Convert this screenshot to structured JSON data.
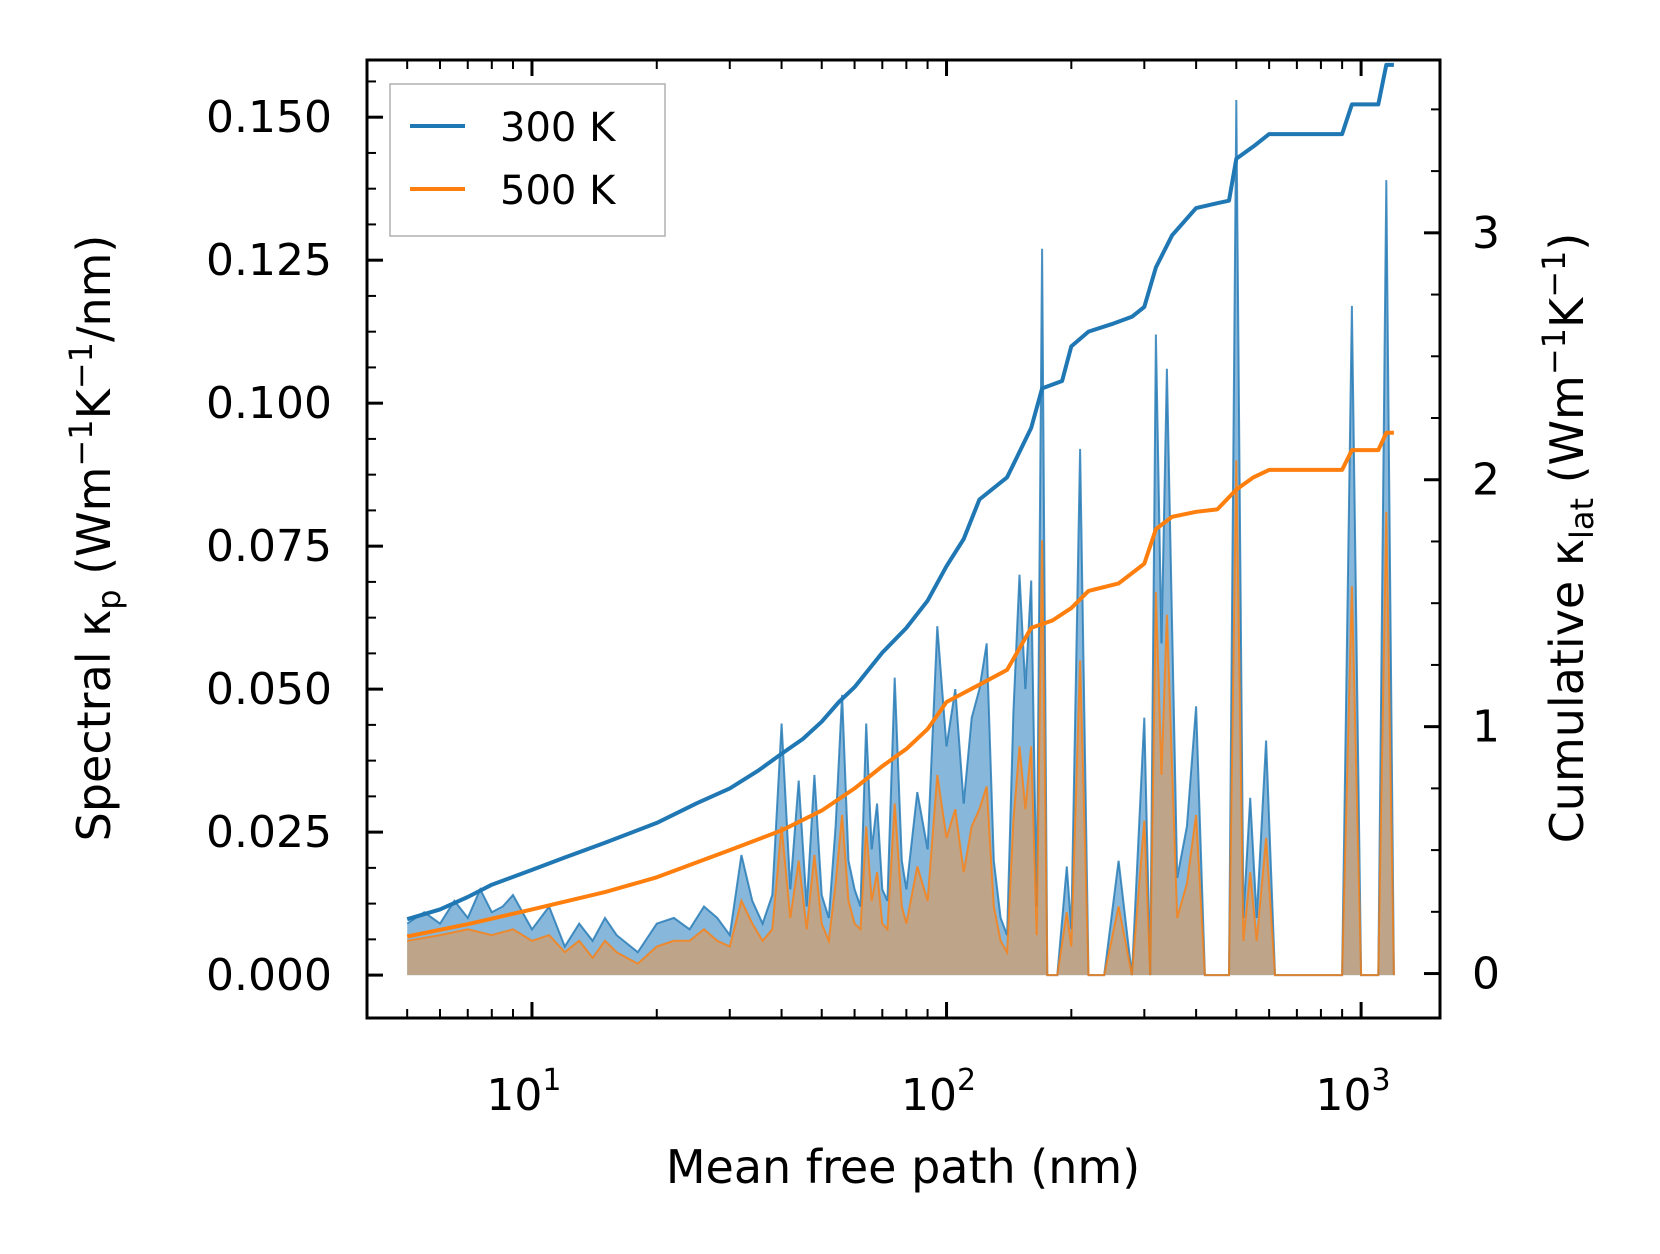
{
  "chart_data": {
    "type": "line",
    "title": "",
    "xlabel": "Mean free path (nm)",
    "xscale": "log",
    "xlim": [
      4.0,
      1550
    ],
    "x_ticks": [
      {
        "base": "10",
        "exp": "1"
      },
      {
        "base": "10",
        "exp": "2"
      },
      {
        "base": "10",
        "exp": "3"
      }
    ],
    "ylabel_left": {
      "main": "Spectral κ",
      "sub": "p",
      "unit_pre": " (Wm",
      "sup1": "−1",
      "unit_mid": "K",
      "sup2": "−1",
      "unit_post": "/nm)"
    },
    "ylabel_right": {
      "main": "Cumulative κ",
      "sub": "lat",
      "unit_pre": " (Wm",
      "sup1": "−1",
      "unit_mid": "K",
      "sup2": "−1",
      "unit_post": ")"
    },
    "ylim_left": [
      -0.0075,
      0.16
    ],
    "ylim_right": [
      -0.18,
      3.7
    ],
    "yticks_left": [
      "0.000",
      "0.025",
      "0.050",
      "0.075",
      "0.100",
      "0.125",
      "0.150"
    ],
    "yticks_right": [
      "0",
      "1",
      "2",
      "3"
    ],
    "legend": {
      "position": "top-left",
      "entries": [
        "300 K",
        "500 K"
      ]
    },
    "colors": {
      "s300": "#1f77b4",
      "s500": "#ff7f0e",
      "fill300": "#7aafd6",
      "fill500": "#c8a27a"
    },
    "series": [
      {
        "name": "300 K",
        "cumulative": [
          [
            5,
            0.22
          ],
          [
            6,
            0.26
          ],
          [
            7,
            0.31
          ],
          [
            8,
            0.36
          ],
          [
            10,
            0.42
          ],
          [
            12,
            0.47
          ],
          [
            15,
            0.53
          ],
          [
            20,
            0.61
          ],
          [
            25,
            0.69
          ],
          [
            30,
            0.75
          ],
          [
            35,
            0.82
          ],
          [
            40,
            0.89
          ],
          [
            45,
            0.95
          ],
          [
            50,
            1.02
          ],
          [
            55,
            1.1
          ],
          [
            60,
            1.16
          ],
          [
            70,
            1.3
          ],
          [
            80,
            1.4
          ],
          [
            90,
            1.51
          ],
          [
            100,
            1.65
          ],
          [
            110,
            1.76
          ],
          [
            120,
            1.92
          ],
          [
            140,
            2.01
          ],
          [
            160,
            2.21
          ],
          [
            170,
            2.37
          ],
          [
            190,
            2.4
          ],
          [
            200,
            2.54
          ],
          [
            220,
            2.6
          ],
          [
            250,
            2.63
          ],
          [
            280,
            2.66
          ],
          [
            300,
            2.7
          ],
          [
            320,
            2.86
          ],
          [
            350,
            2.99
          ],
          [
            400,
            3.1
          ],
          [
            450,
            3.12
          ],
          [
            480,
            3.13
          ],
          [
            500,
            3.3
          ],
          [
            550,
            3.35
          ],
          [
            600,
            3.4
          ],
          [
            900,
            3.4
          ],
          [
            950,
            3.52
          ],
          [
            1100,
            3.52
          ],
          [
            1150,
            3.68
          ],
          [
            1200,
            3.68
          ]
        ],
        "spectral": [
          [
            5,
            0.009
          ],
          [
            5.5,
            0.011
          ],
          [
            6,
            0.009
          ],
          [
            6.5,
            0.013
          ],
          [
            7,
            0.01
          ],
          [
            7.5,
            0.015
          ],
          [
            8,
            0.011
          ],
          [
            8.5,
            0.012
          ],
          [
            9,
            0.014
          ],
          [
            10,
            0.008
          ],
          [
            11,
            0.012
          ],
          [
            12,
            0.005
          ],
          [
            13,
            0.009
          ],
          [
            14,
            0.006
          ],
          [
            15,
            0.01
          ],
          [
            16,
            0.007
          ],
          [
            18,
            0.004
          ],
          [
            20,
            0.009
          ],
          [
            22,
            0.01
          ],
          [
            24,
            0.008
          ],
          [
            26,
            0.012
          ],
          [
            28,
            0.01
          ],
          [
            30,
            0.007
          ],
          [
            32,
            0.021
          ],
          [
            34,
            0.013
          ],
          [
            36,
            0.009
          ],
          [
            38,
            0.014
          ],
          [
            40,
            0.044
          ],
          [
            42,
            0.015
          ],
          [
            44,
            0.034
          ],
          [
            46,
            0.012
          ],
          [
            48,
            0.035
          ],
          [
            50,
            0.014
          ],
          [
            52,
            0.01
          ],
          [
            54,
            0.026
          ],
          [
            56,
            0.049
          ],
          [
            58,
            0.02
          ],
          [
            60,
            0.015
          ],
          [
            62,
            0.012
          ],
          [
            64,
            0.044
          ],
          [
            66,
            0.022
          ],
          [
            68,
            0.03
          ],
          [
            70,
            0.015
          ],
          [
            72,
            0.013
          ],
          [
            75,
            0.052
          ],
          [
            78,
            0.02
          ],
          [
            80,
            0.015
          ],
          [
            85,
            0.032
          ],
          [
            90,
            0.022
          ],
          [
            95,
            0.061
          ],
          [
            100,
            0.04
          ],
          [
            105,
            0.05
          ],
          [
            110,
            0.03
          ],
          [
            115,
            0.045
          ],
          [
            120,
            0.05
          ],
          [
            125,
            0.058
          ],
          [
            130,
            0.02
          ],
          [
            135,
            0.01
          ],
          [
            140,
            0.007
          ],
          [
            145,
            0.046
          ],
          [
            150,
            0.07
          ],
          [
            155,
            0.05
          ],
          [
            160,
            0.069
          ],
          [
            165,
            0.012
          ],
          [
            170,
            0.127
          ],
          [
            175,
            0.0
          ],
          [
            185,
            0.0
          ],
          [
            195,
            0.019
          ],
          [
            200,
            0.008
          ],
          [
            210,
            0.092
          ],
          [
            220,
            0.0
          ],
          [
            240,
            0.0
          ],
          [
            260,
            0.02
          ],
          [
            280,
            0.0
          ],
          [
            300,
            0.045
          ],
          [
            310,
            0.0
          ],
          [
            320,
            0.112
          ],
          [
            330,
            0.058
          ],
          [
            340,
            0.106
          ],
          [
            360,
            0.017
          ],
          [
            380,
            0.026
          ],
          [
            400,
            0.047
          ],
          [
            420,
            0.0
          ],
          [
            450,
            0.0
          ],
          [
            480,
            0.0
          ],
          [
            500,
            0.153
          ],
          [
            520,
            0.01
          ],
          [
            540,
            0.031
          ],
          [
            560,
            0.01
          ],
          [
            590,
            0.041
          ],
          [
            620,
            0.0
          ],
          [
            700,
            0.0
          ],
          [
            900,
            0.0
          ],
          [
            950,
            0.117
          ],
          [
            1000,
            0.0
          ],
          [
            1100,
            0.0
          ],
          [
            1150,
            0.139
          ],
          [
            1200,
            0.0
          ]
        ]
      },
      {
        "name": "500 K",
        "cumulative": [
          [
            5,
            0.15
          ],
          [
            7,
            0.2
          ],
          [
            10,
            0.26
          ],
          [
            15,
            0.33
          ],
          [
            20,
            0.39
          ],
          [
            30,
            0.5
          ],
          [
            40,
            0.58
          ],
          [
            50,
            0.66
          ],
          [
            60,
            0.75
          ],
          [
            70,
            0.84
          ],
          [
            80,
            0.91
          ],
          [
            90,
            0.99
          ],
          [
            100,
            1.1
          ],
          [
            120,
            1.17
          ],
          [
            140,
            1.23
          ],
          [
            160,
            1.4
          ],
          [
            180,
            1.43
          ],
          [
            200,
            1.48
          ],
          [
            220,
            1.55
          ],
          [
            260,
            1.58
          ],
          [
            300,
            1.66
          ],
          [
            320,
            1.8
          ],
          [
            350,
            1.85
          ],
          [
            400,
            1.87
          ],
          [
            450,
            1.88
          ],
          [
            500,
            1.96
          ],
          [
            550,
            2.01
          ],
          [
            600,
            2.04
          ],
          [
            900,
            2.04
          ],
          [
            950,
            2.12
          ],
          [
            1100,
            2.12
          ],
          [
            1150,
            2.19
          ],
          [
            1200,
            2.19
          ]
        ],
        "spectral": [
          [
            5,
            0.006
          ],
          [
            6,
            0.007
          ],
          [
            7,
            0.008
          ],
          [
            8,
            0.007
          ],
          [
            9,
            0.008
          ],
          [
            10,
            0.006
          ],
          [
            11,
            0.007
          ],
          [
            12,
            0.004
          ],
          [
            13,
            0.006
          ],
          [
            14,
            0.003
          ],
          [
            15,
            0.006
          ],
          [
            16,
            0.004
          ],
          [
            18,
            0.002
          ],
          [
            20,
            0.005
          ],
          [
            22,
            0.006
          ],
          [
            24,
            0.006
          ],
          [
            26,
            0.008
          ],
          [
            28,
            0.006
          ],
          [
            30,
            0.005
          ],
          [
            32,
            0.013
          ],
          [
            34,
            0.009
          ],
          [
            36,
            0.006
          ],
          [
            38,
            0.008
          ],
          [
            40,
            0.026
          ],
          [
            42,
            0.01
          ],
          [
            44,
            0.02
          ],
          [
            46,
            0.008
          ],
          [
            48,
            0.021
          ],
          [
            50,
            0.009
          ],
          [
            52,
            0.006
          ],
          [
            54,
            0.016
          ],
          [
            56,
            0.028
          ],
          [
            58,
            0.013
          ],
          [
            60,
            0.009
          ],
          [
            62,
            0.008
          ],
          [
            64,
            0.026
          ],
          [
            66,
            0.013
          ],
          [
            68,
            0.018
          ],
          [
            70,
            0.009
          ],
          [
            72,
            0.008
          ],
          [
            75,
            0.03
          ],
          [
            78,
            0.012
          ],
          [
            80,
            0.009
          ],
          [
            85,
            0.019
          ],
          [
            90,
            0.013
          ],
          [
            95,
            0.035
          ],
          [
            100,
            0.024
          ],
          [
            105,
            0.029
          ],
          [
            110,
            0.018
          ],
          [
            115,
            0.026
          ],
          [
            120,
            0.029
          ],
          [
            125,
            0.033
          ],
          [
            130,
            0.012
          ],
          [
            135,
            0.006
          ],
          [
            140,
            0.004
          ],
          [
            145,
            0.027
          ],
          [
            150,
            0.04
          ],
          [
            155,
            0.029
          ],
          [
            160,
            0.04
          ],
          [
            165,
            0.007
          ],
          [
            170,
            0.076
          ],
          [
            175,
            0.0
          ],
          [
            185,
            0.0
          ],
          [
            195,
            0.011
          ],
          [
            200,
            0.005
          ],
          [
            210,
            0.055
          ],
          [
            220,
            0.0
          ],
          [
            240,
            0.0
          ],
          [
            260,
            0.012
          ],
          [
            280,
            0.0
          ],
          [
            300,
            0.027
          ],
          [
            310,
            0.0
          ],
          [
            320,
            0.067
          ],
          [
            330,
            0.035
          ],
          [
            340,
            0.063
          ],
          [
            360,
            0.01
          ],
          [
            380,
            0.016
          ],
          [
            400,
            0.028
          ],
          [
            420,
            0.0
          ],
          [
            450,
            0.0
          ],
          [
            480,
            0.0
          ],
          [
            500,
            0.09
          ],
          [
            520,
            0.006
          ],
          [
            540,
            0.018
          ],
          [
            560,
            0.006
          ],
          [
            590,
            0.024
          ],
          [
            620,
            0.0
          ],
          [
            700,
            0.0
          ],
          [
            900,
            0.0
          ],
          [
            950,
            0.068
          ],
          [
            1000,
            0.0
          ],
          [
            1100,
            0.0
          ],
          [
            1150,
            0.081
          ],
          [
            1200,
            0.0
          ]
        ]
      }
    ]
  }
}
